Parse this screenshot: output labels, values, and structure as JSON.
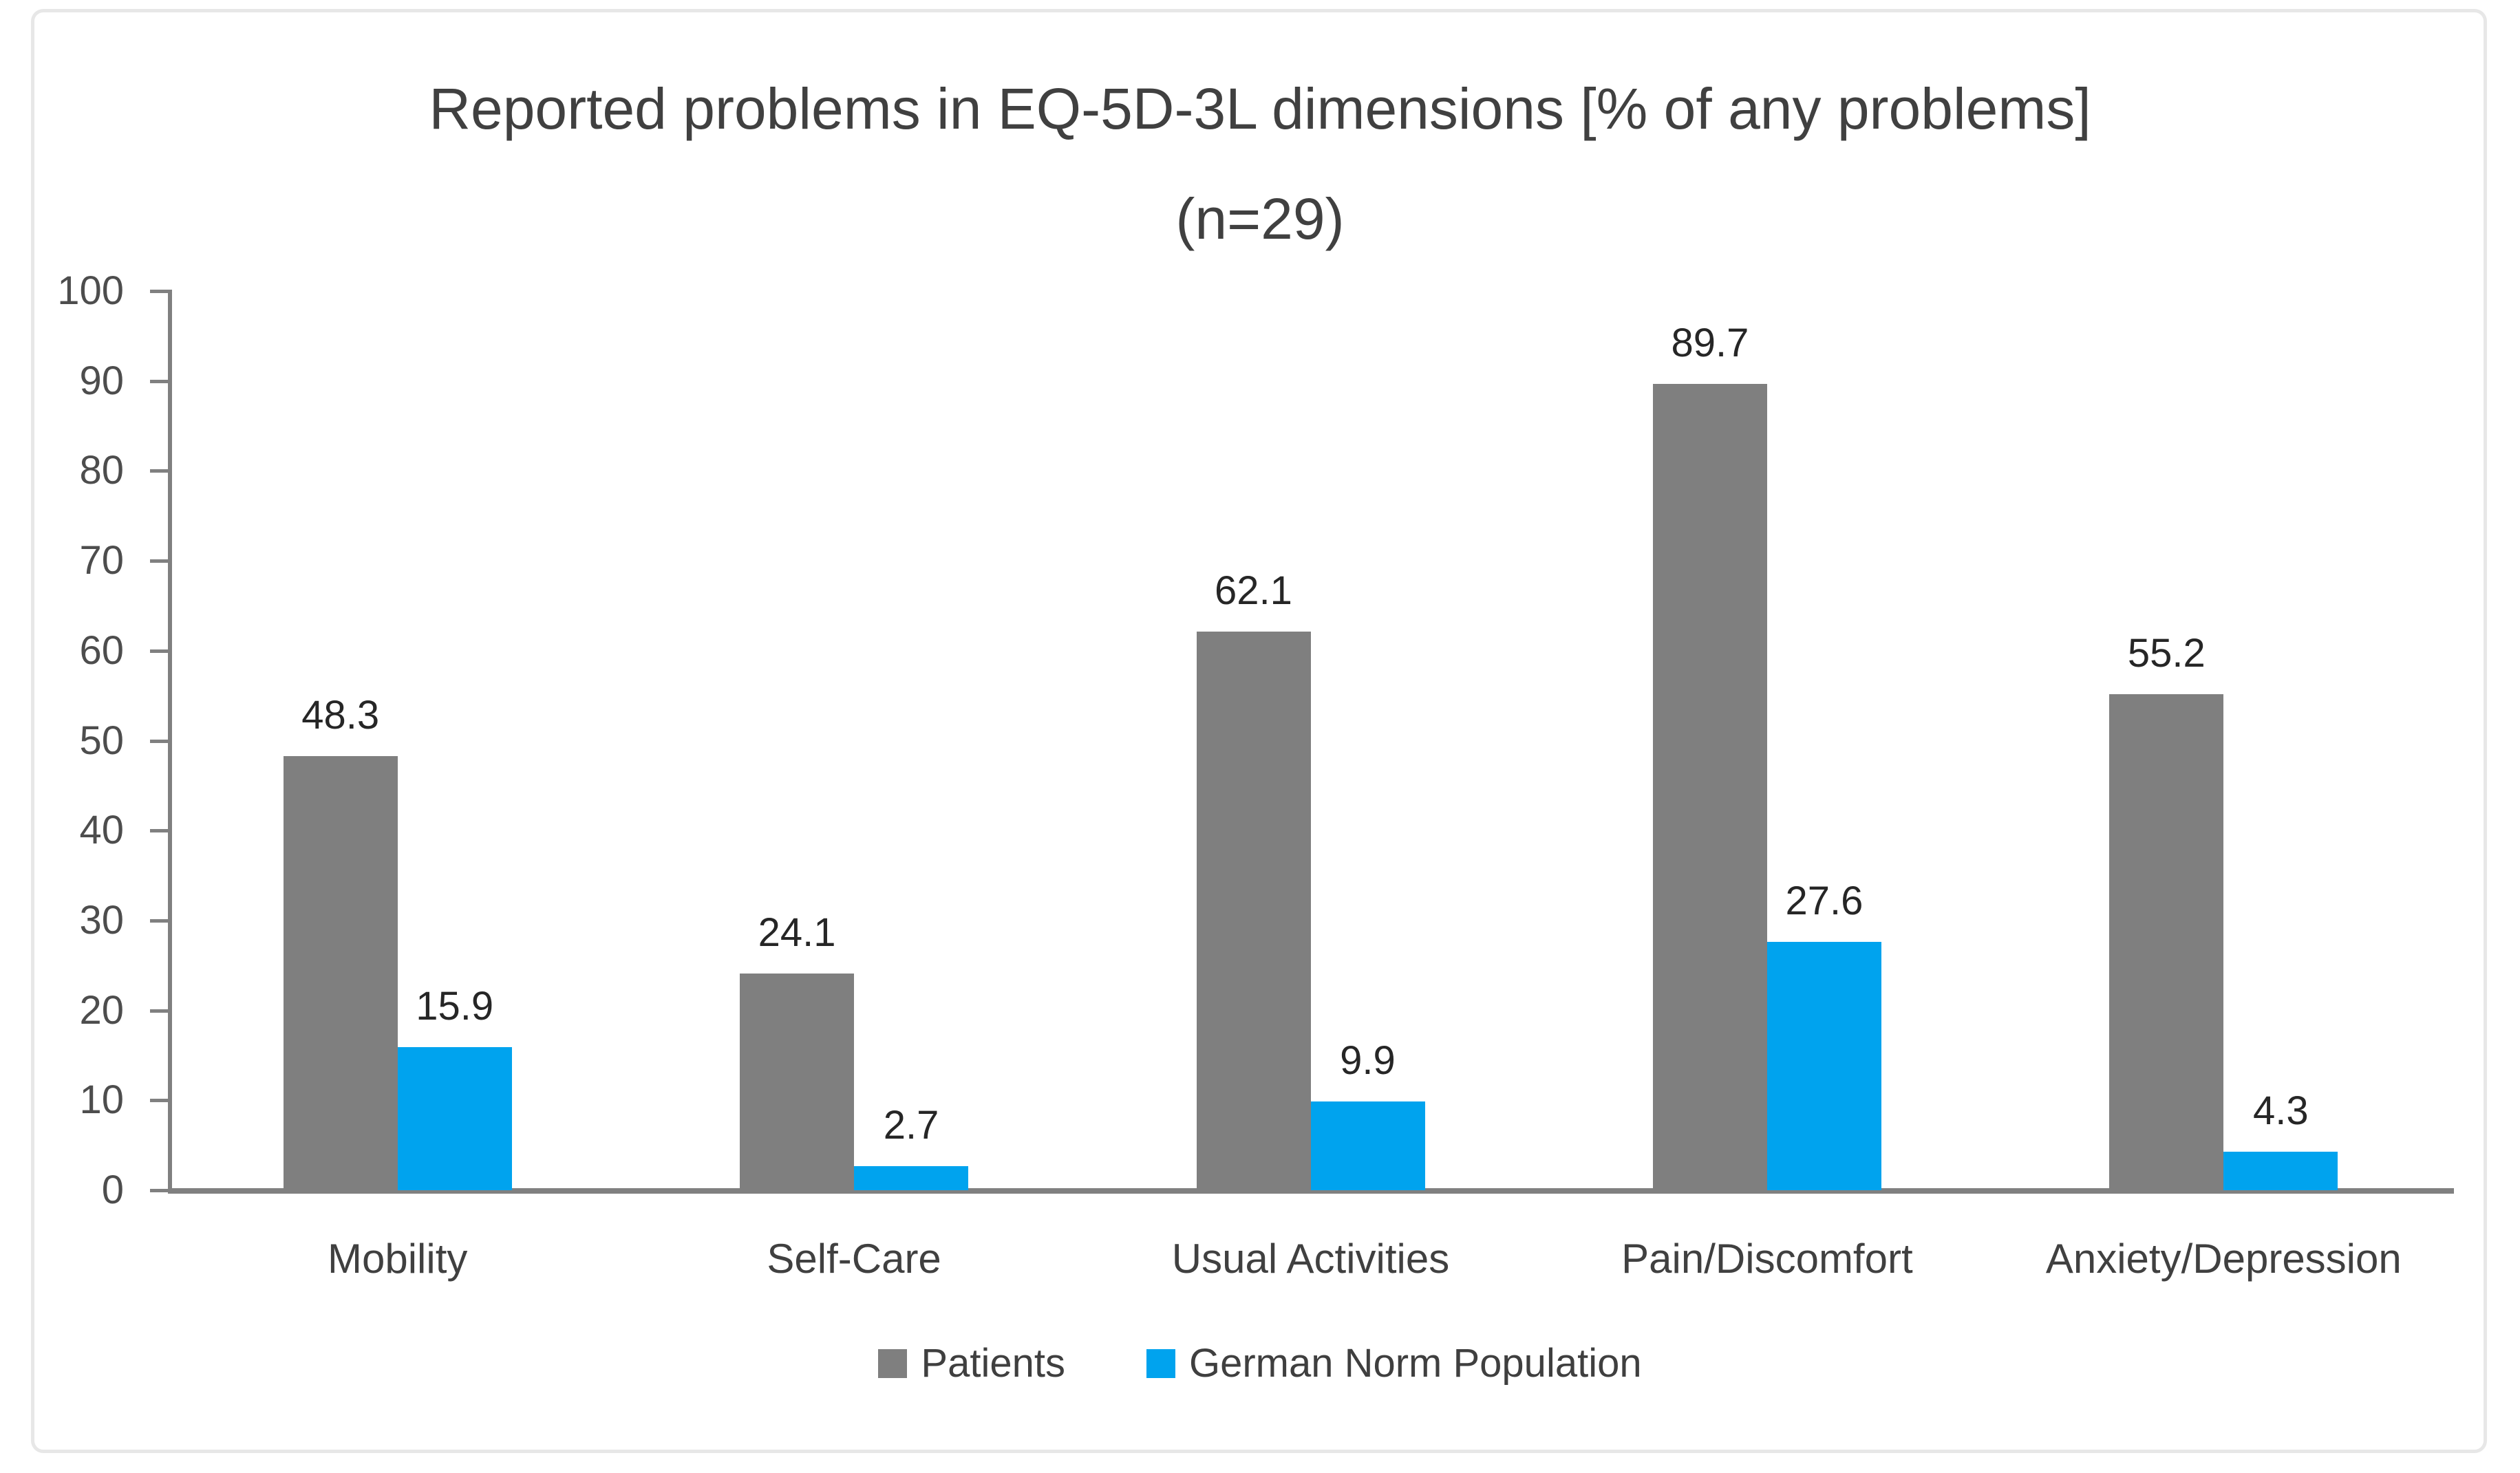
{
  "title": {
    "line1": "Reported problems in EQ-5D-3L dimensions [% of any problems]",
    "line2": "(n=29)"
  },
  "chart_data": {
    "type": "bar",
    "title": "Reported problems in EQ-5D-3L dimensions [% of any problems]",
    "subtitle": "(n=29)",
    "categories": [
      "Mobility",
      "Self-Care",
      "Usual Activities",
      "Pain/Discomfort",
      "Anxiety/Depression"
    ],
    "series": [
      {
        "name": "Patients",
        "color": "#7f7f7f",
        "values": [
          48.3,
          24.1,
          62.1,
          89.7,
          55.2
        ]
      },
      {
        "name": "German Norm Population",
        "color": "#00a3ee",
        "values": [
          15.9,
          2.7,
          9.9,
          27.6,
          4.3
        ]
      }
    ],
    "data_labels": true,
    "xlabel": "",
    "ylabel": "",
    "ylim": [
      0,
      100
    ],
    "yticks": [
      0,
      10,
      20,
      30,
      40,
      50,
      60,
      70,
      80,
      90,
      100
    ],
    "grid": false,
    "legend_position": "bottom",
    "axis_color": "#808080",
    "background": "#ffffff"
  }
}
